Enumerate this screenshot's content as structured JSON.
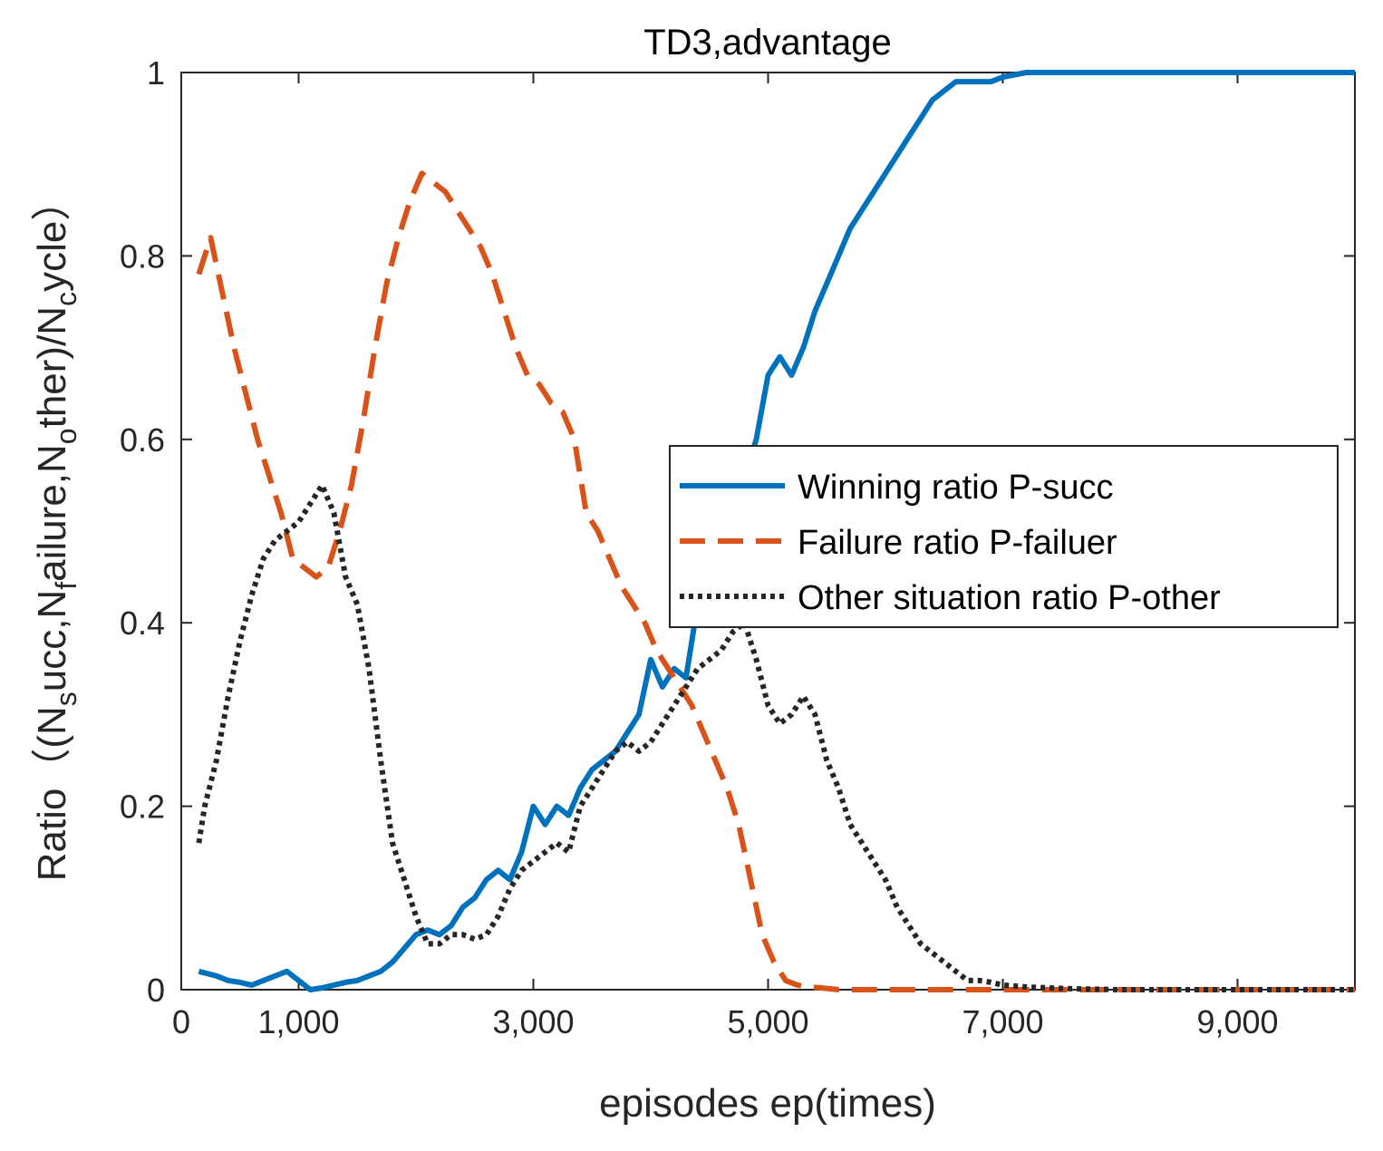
{
  "chart_data": {
    "type": "line",
    "title": "TD3,advantage",
    "xlabel": "episodes ep(times)",
    "ylabel": "Ratio（(N_succ,N_failure,N_other)/N_cycle）",
    "ylabel_parts": {
      "prefix": "Ratio（(N",
      "s": "s",
      "mid1": "ucc,N",
      "f": "f",
      "mid2": "ailure,N",
      "o": "o",
      "mid3": "ther)/N",
      "c": "c",
      "suffix": "ycle）"
    },
    "xlim": [
      0,
      10000
    ],
    "ylim": [
      0,
      1
    ],
    "xticks": [
      0,
      1000,
      3000,
      5000,
      7000,
      9000
    ],
    "xtick_labels": [
      "0",
      "1,000",
      "3,000",
      "5,000",
      "7,000",
      "9,000"
    ],
    "yticks": [
      0,
      0.2,
      0.4,
      0.6,
      0.8,
      1
    ],
    "ytick_labels": [
      "0",
      "0.2",
      "0.4",
      "0.6",
      "0.8",
      "1"
    ],
    "legend_position": "center-right",
    "series": [
      {
        "name": "Winning ratio P-succ",
        "color": "#0072BD",
        "style": "solid",
        "x": [
          150,
          300,
          400,
          500,
          600,
          700,
          800,
          900,
          1000,
          1100,
          1200,
          1300,
          1400,
          1500,
          1600,
          1700,
          1800,
          1900,
          2000,
          2100,
          2200,
          2300,
          2400,
          2500,
          2600,
          2700,
          2800,
          2900,
          3000,
          3100,
          3200,
          3300,
          3400,
          3500,
          3600,
          3700,
          3800,
          3900,
          4000,
          4100,
          4200,
          4300,
          4400,
          4500,
          4600,
          4700,
          4800,
          4900,
          5000,
          5100,
          5200,
          5300,
          5400,
          5500,
          5600,
          5700,
          5800,
          5900,
          6000,
          6100,
          6200,
          6300,
          6400,
          6500,
          6600,
          6700,
          6800,
          6900,
          7000,
          7200,
          7400,
          7600,
          7800,
          8000,
          9000,
          10000
        ],
        "y": [
          0.02,
          0.015,
          0.01,
          0.008,
          0.005,
          0.01,
          0.015,
          0.02,
          0.01,
          0.0,
          0.002,
          0.005,
          0.008,
          0.01,
          0.015,
          0.02,
          0.03,
          0.045,
          0.06,
          0.065,
          0.06,
          0.07,
          0.09,
          0.1,
          0.12,
          0.13,
          0.12,
          0.15,
          0.2,
          0.18,
          0.2,
          0.19,
          0.22,
          0.24,
          0.25,
          0.26,
          0.28,
          0.3,
          0.36,
          0.33,
          0.35,
          0.34,
          0.42,
          0.45,
          0.48,
          0.52,
          0.56,
          0.6,
          0.67,
          0.69,
          0.67,
          0.7,
          0.74,
          0.77,
          0.8,
          0.83,
          0.85,
          0.87,
          0.89,
          0.91,
          0.93,
          0.95,
          0.97,
          0.98,
          0.99,
          0.99,
          0.99,
          0.99,
          0.995,
          1.0,
          1.0,
          1.0,
          1.0,
          1.0,
          1.0,
          1.0
        ]
      },
      {
        "name": "Failure ratio P-failuer",
        "color": "#D95319",
        "style": "dashed",
        "x": [
          150,
          250,
          350,
          450,
          550,
          650,
          750,
          850,
          950,
          1050,
          1150,
          1250,
          1350,
          1450,
          1550,
          1650,
          1750,
          1850,
          1950,
          2050,
          2150,
          2250,
          2350,
          2450,
          2550,
          2650,
          2750,
          2850,
          2950,
          3050,
          3150,
          3250,
          3350,
          3450,
          3550,
          3650,
          3750,
          3850,
          3950,
          4050,
          4150,
          4250,
          4350,
          4450,
          4550,
          4650,
          4750,
          4850,
          4950,
          5050,
          5150,
          5250,
          5350,
          5450,
          5600,
          5800,
          6000,
          6500,
          7000,
          8000,
          9000,
          10000
        ],
        "y": [
          0.78,
          0.82,
          0.76,
          0.7,
          0.65,
          0.6,
          0.56,
          0.52,
          0.47,
          0.46,
          0.45,
          0.46,
          0.5,
          0.55,
          0.62,
          0.7,
          0.77,
          0.82,
          0.86,
          0.89,
          0.88,
          0.87,
          0.85,
          0.83,
          0.81,
          0.78,
          0.74,
          0.7,
          0.67,
          0.66,
          0.64,
          0.63,
          0.6,
          0.52,
          0.5,
          0.47,
          0.44,
          0.42,
          0.4,
          0.37,
          0.35,
          0.33,
          0.31,
          0.28,
          0.25,
          0.22,
          0.18,
          0.12,
          0.06,
          0.03,
          0.01,
          0.005,
          0.003,
          0.002,
          0.0,
          0.0,
          0.0,
          0.0,
          0.0,
          0.0,
          0.0,
          0.0
        ]
      },
      {
        "name": "Other situation ratio P-other",
        "color": "#262626",
        "style": "dotted",
        "x": [
          150,
          200,
          300,
          400,
          500,
          600,
          700,
          800,
          900,
          1000,
          1100,
          1200,
          1300,
          1400,
          1500,
          1600,
          1700,
          1800,
          1900,
          2000,
          2100,
          2200,
          2300,
          2400,
          2500,
          2600,
          2700,
          2800,
          2900,
          3000,
          3100,
          3200,
          3300,
          3400,
          3500,
          3600,
          3700,
          3800,
          3900,
          4000,
          4100,
          4200,
          4300,
          4400,
          4500,
          4600,
          4700,
          4800,
          4900,
          5000,
          5100,
          5200,
          5300,
          5400,
          5500,
          5600,
          5700,
          5800,
          5900,
          6000,
          6100,
          6200,
          6300,
          6400,
          6500,
          6600,
          6700,
          6800,
          6900,
          7000,
          7200,
          7400,
          7600,
          8000,
          9000,
          10000
        ],
        "y": [
          0.16,
          0.2,
          0.25,
          0.32,
          0.38,
          0.43,
          0.47,
          0.49,
          0.5,
          0.51,
          0.53,
          0.55,
          0.52,
          0.45,
          0.42,
          0.35,
          0.25,
          0.16,
          0.12,
          0.08,
          0.05,
          0.05,
          0.06,
          0.06,
          0.055,
          0.06,
          0.08,
          0.11,
          0.13,
          0.14,
          0.15,
          0.16,
          0.15,
          0.2,
          0.22,
          0.24,
          0.26,
          0.27,
          0.26,
          0.27,
          0.29,
          0.31,
          0.33,
          0.35,
          0.36,
          0.37,
          0.39,
          0.4,
          0.36,
          0.31,
          0.29,
          0.3,
          0.32,
          0.3,
          0.25,
          0.22,
          0.18,
          0.16,
          0.14,
          0.12,
          0.09,
          0.07,
          0.05,
          0.04,
          0.03,
          0.02,
          0.01,
          0.01,
          0.008,
          0.005,
          0.003,
          0.002,
          0.001,
          0.0,
          0.0,
          0.0
        ]
      }
    ]
  }
}
